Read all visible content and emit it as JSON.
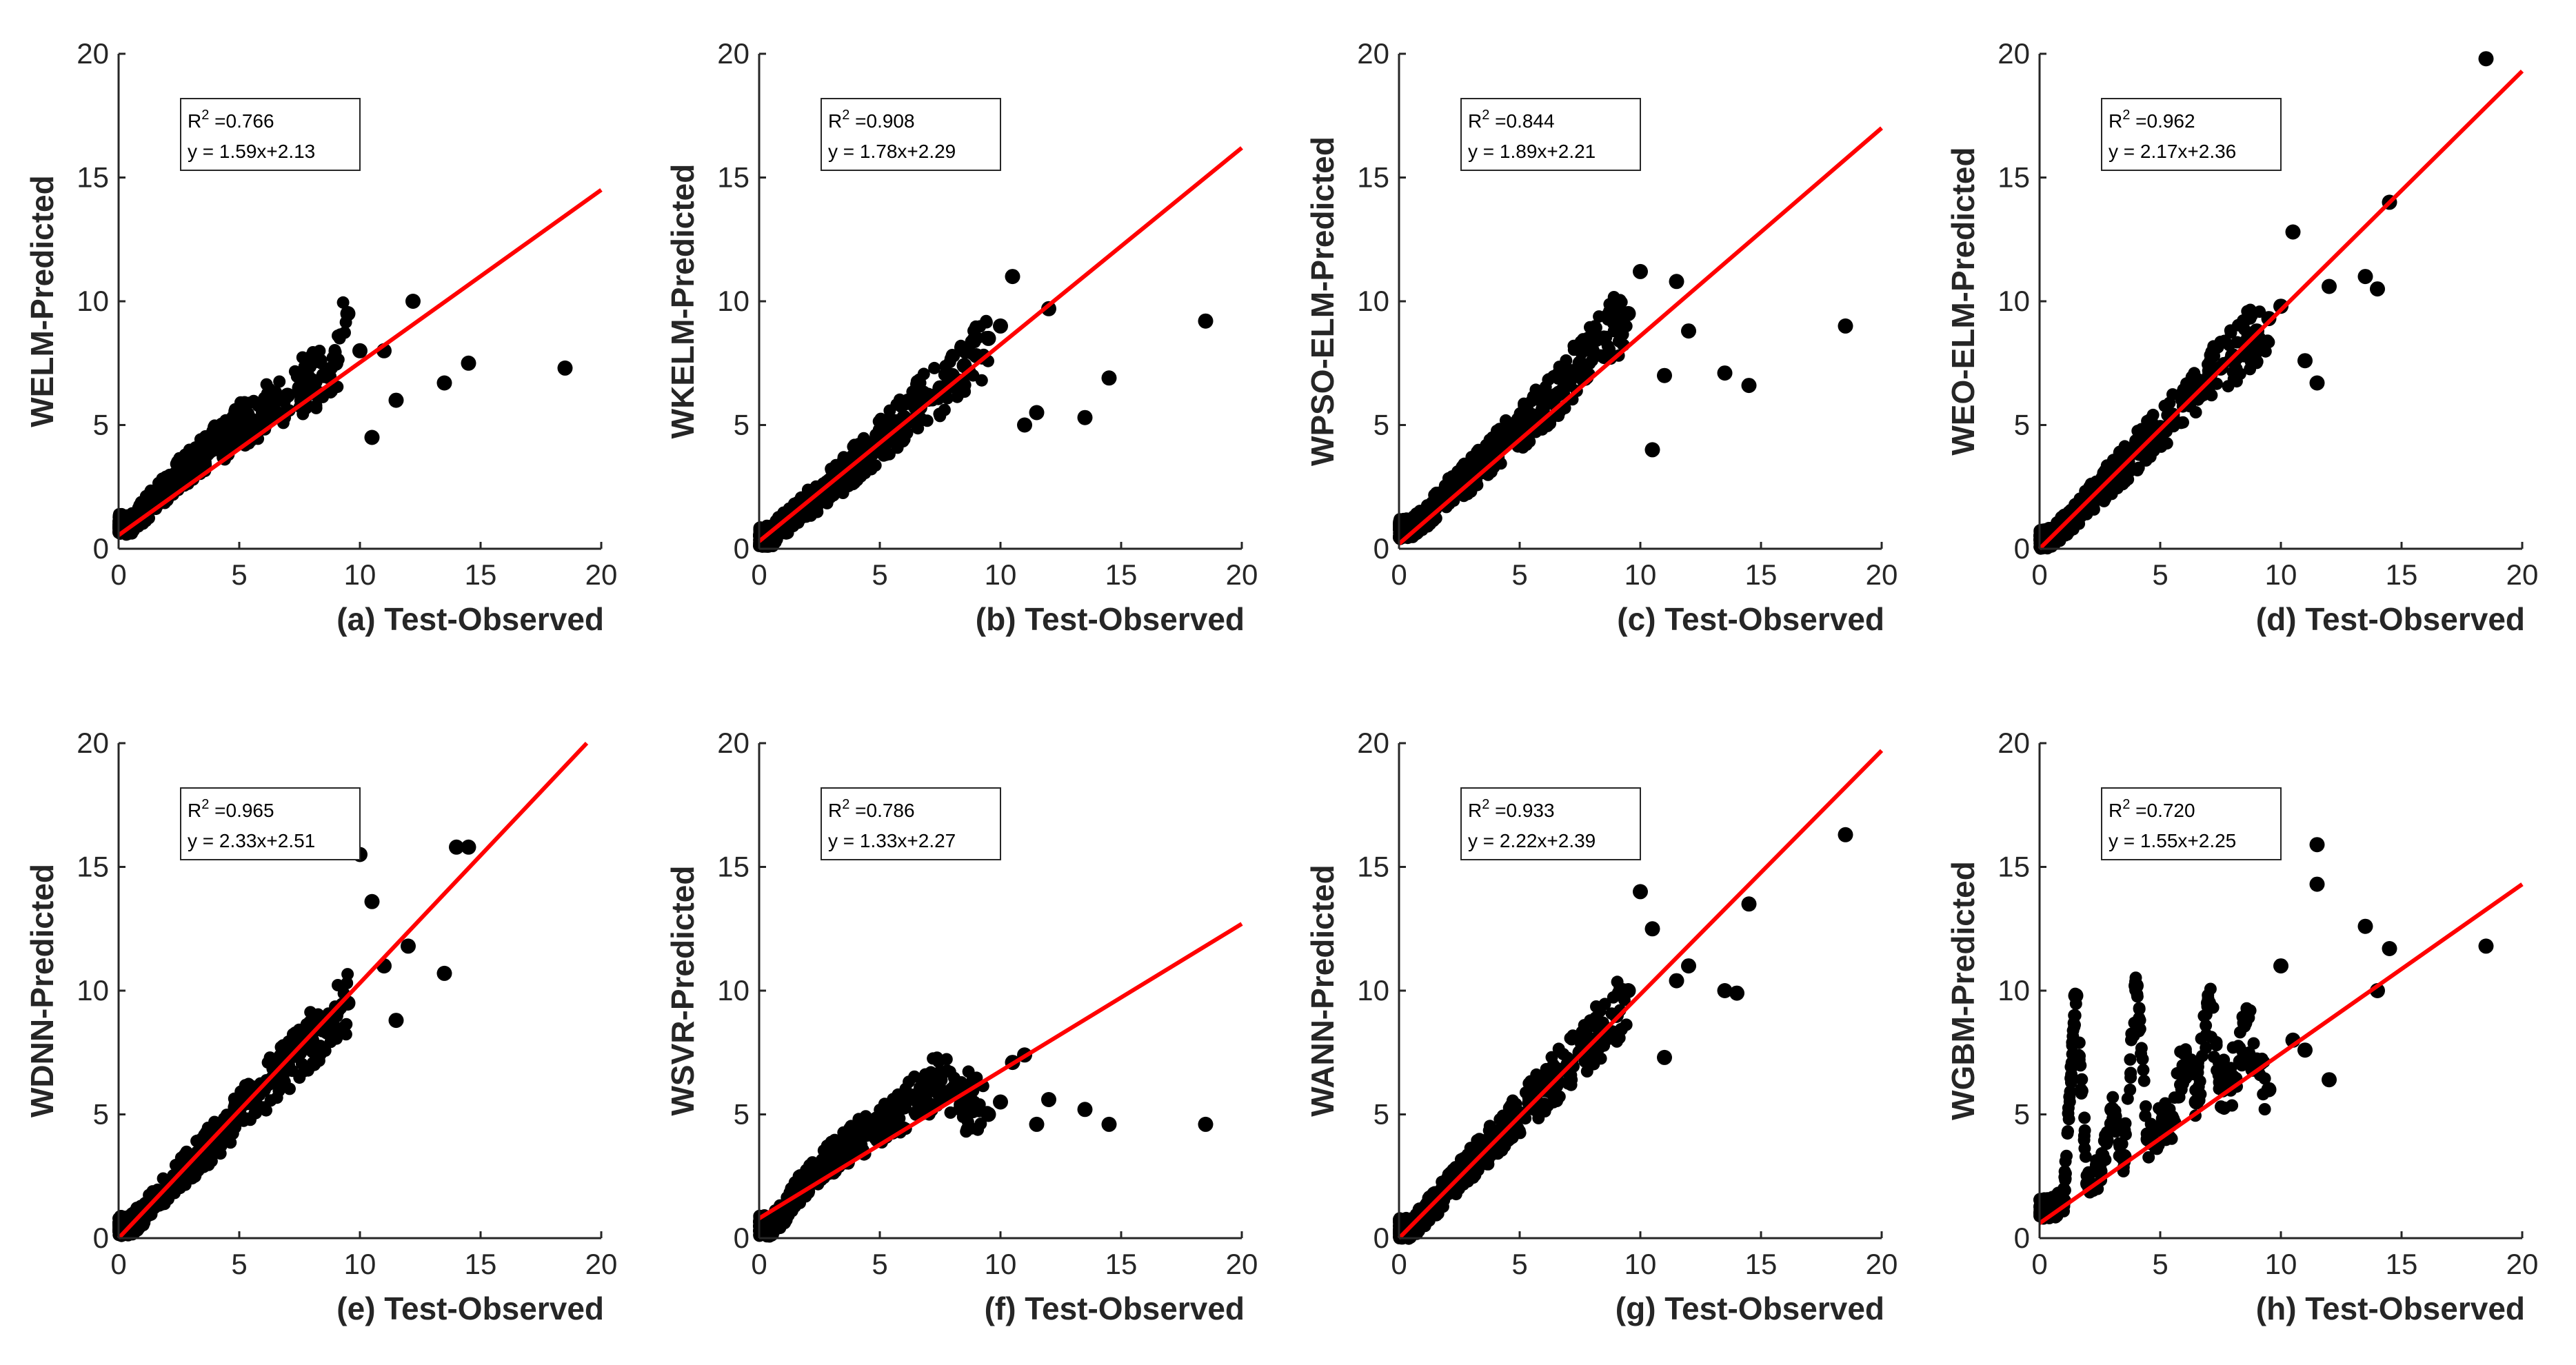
{
  "figure": {
    "fit_color": "#ff0000",
    "point_color": "#000000",
    "axis_color": "#262626"
  },
  "chart_data": [
    {
      "type": "scatter",
      "panel_label": "(a) Test-Observed",
      "ylabel": "WELM-Predicted",
      "xlim": [
        0,
        20
      ],
      "ylim": [
        0,
        20
      ],
      "xticks": [
        0,
        5,
        10,
        15,
        20
      ],
      "yticks": [
        0,
        5,
        10,
        15,
        20
      ],
      "annotation": {
        "r2_label": "R",
        "r2_sup": "2",
        "r2_value": " =0.766",
        "equation": "y = 1.59x+2.13"
      },
      "fit_line": {
        "x": [
          0,
          20
        ],
        "y": [
          0.55,
          14.5
        ]
      },
      "x": [
        0.5,
        1.0,
        1.5,
        2.0,
        2.5,
        3.0,
        3.5,
        4.0,
        4.5,
        5.0,
        5.5,
        6.0,
        6.5,
        7.0,
        7.5,
        8.0,
        8.5,
        9.0,
        9.5,
        10.0,
        10.5,
        11.0,
        11.5,
        12.2,
        13.5,
        14.5,
        18.5
      ],
      "y": [
        1.0,
        1.5,
        2.0,
        2.5,
        3.0,
        3.4,
        3.8,
        4.2,
        4.5,
        5.0,
        5.2,
        5.5,
        6.0,
        6.2,
        6.5,
        6.8,
        7.0,
        7.5,
        9.5,
        8.0,
        4.5,
        8.0,
        6.0,
        10.0,
        6.7,
        7.5,
        7.3
      ]
    },
    {
      "type": "scatter",
      "panel_label": "(b) Test-Observed",
      "ylabel": "WKELM-Predicted",
      "xlim": [
        0,
        20
      ],
      "ylim": [
        0,
        20
      ],
      "xticks": [
        0,
        5,
        10,
        15,
        20
      ],
      "yticks": [
        0,
        5,
        10,
        15,
        20
      ],
      "annotation": {
        "r2_label": "R",
        "r2_sup": "2",
        "r2_value": " =0.908",
        "equation": "y = 1.78x+2.29"
      },
      "fit_line": {
        "x": [
          0,
          20
        ],
        "y": [
          0.3,
          16.2
        ]
      },
      "x": [
        0.5,
        1.0,
        1.5,
        2.0,
        2.5,
        3.0,
        3.5,
        4.0,
        4.5,
        5.0,
        5.5,
        6.0,
        6.5,
        7.0,
        7.5,
        8.0,
        8.5,
        9.0,
        9.5,
        10.0,
        10.5,
        11.0,
        11.5,
        12.0,
        13.5,
        14.5,
        18.5
      ],
      "y": [
        0.5,
        1.0,
        1.4,
        1.8,
        2.2,
        2.7,
        3.0,
        3.5,
        3.9,
        4.4,
        4.8,
        5.3,
        5.7,
        6.2,
        6.5,
        7.0,
        7.4,
        7.8,
        8.5,
        9.0,
        11.0,
        5.0,
        5.5,
        9.7,
        5.3,
        6.9,
        9.2
      ]
    },
    {
      "type": "scatter",
      "panel_label": "(c) Test-Observed",
      "ylabel": "WPSO-ELM-Predicted",
      "xlim": [
        0,
        20
      ],
      "ylim": [
        0,
        20
      ],
      "xticks": [
        0,
        5,
        10,
        15,
        20
      ],
      "yticks": [
        0,
        5,
        10,
        15,
        20
      ],
      "annotation": {
        "r2_label": "R",
        "r2_sup": "2",
        "r2_value": " =0.844",
        "equation": "y = 1.89x+2.21"
      },
      "fit_line": {
        "x": [
          0,
          20
        ],
        "y": [
          0.2,
          17.0
        ]
      },
      "x": [
        0.5,
        1.0,
        1.5,
        2.0,
        2.5,
        3.0,
        3.5,
        4.0,
        4.5,
        5.0,
        5.5,
        6.0,
        6.5,
        7.0,
        7.5,
        8.0,
        8.5,
        9.0,
        9.5,
        10.0,
        10.5,
        11.0,
        11.5,
        12.0,
        13.5,
        14.5,
        18.5
      ],
      "y": [
        0.8,
        1.2,
        1.7,
        2.2,
        2.6,
        3.0,
        3.6,
        4.0,
        4.4,
        4.8,
        5.3,
        5.8,
        6.2,
        6.8,
        7.5,
        8.0,
        8.5,
        9.0,
        9.5,
        11.2,
        4.0,
        7.0,
        10.8,
        8.8,
        7.1,
        6.6,
        9.0
      ]
    },
    {
      "type": "scatter",
      "panel_label": "(d) Test-Observed",
      "ylabel": "WEO-ELM-Predicted",
      "xlim": [
        0,
        20
      ],
      "ylim": [
        0,
        20
      ],
      "xticks": [
        0,
        5,
        10,
        15,
        20
      ],
      "yticks": [
        0,
        5,
        10,
        15,
        20
      ],
      "annotation": {
        "r2_label": "R",
        "r2_sup": "2",
        "r2_value": " =0.962",
        "equation": "y = 2.17x+2.36"
      },
      "fit_line": {
        "x": [
          0,
          20
        ],
        "y": [
          0.0,
          19.3
        ]
      },
      "x": [
        0.5,
        1.0,
        1.5,
        2.0,
        2.5,
        3.0,
        3.5,
        4.0,
        4.5,
        5.0,
        5.5,
        6.0,
        6.5,
        7.0,
        7.5,
        8.0,
        8.5,
        9.0,
        9.5,
        10.0,
        10.5,
        11.0,
        11.5,
        12.0,
        13.5,
        14.0,
        14.5,
        18.5
      ],
      "y": [
        0.4,
        0.9,
        1.4,
        1.9,
        2.4,
        2.9,
        3.4,
        3.9,
        4.4,
        4.9,
        5.4,
        5.9,
        6.4,
        6.9,
        7.3,
        7.8,
        8.3,
        8.8,
        9.3,
        9.8,
        12.8,
        7.6,
        6.7,
        10.6,
        11.0,
        10.5,
        14.0,
        19.8
      ]
    },
    {
      "type": "scatter",
      "panel_label": "(e) Test-Observed",
      "ylabel": "WDNN-Predicted",
      "xlim": [
        0,
        20
      ],
      "ylim": [
        0,
        20
      ],
      "xticks": [
        0,
        5,
        10,
        15,
        20
      ],
      "yticks": [
        0,
        5,
        10,
        15,
        20
      ],
      "annotation": {
        "r2_label": "R",
        "r2_sup": "2",
        "r2_value": " =0.965",
        "equation": "y = 2.33x+2.51"
      },
      "fit_line": {
        "x": [
          0,
          19.4
        ],
        "y": [
          0.0,
          20.0
        ]
      },
      "x": [
        0.5,
        1.0,
        1.5,
        2.0,
        2.5,
        3.0,
        3.5,
        4.0,
        4.5,
        5.0,
        5.5,
        6.0,
        6.5,
        7.0,
        7.5,
        8.0,
        8.5,
        9.0,
        9.5,
        10.0,
        10.5,
        11.0,
        11.5,
        12.0,
        13.5,
        14.0,
        14.5
      ],
      "y": [
        0.5,
        1.0,
        1.5,
        2.0,
        2.5,
        3.0,
        3.5,
        4.0,
        4.5,
        5.0,
        5.5,
        6.0,
        6.5,
        7.0,
        7.5,
        8.0,
        8.5,
        9.0,
        9.5,
        15.5,
        13.6,
        11.0,
        8.8,
        11.8,
        10.7,
        15.8,
        15.8
      ]
    },
    {
      "type": "scatter",
      "panel_label": "(f) Test-Observed",
      "ylabel": "WSVR-Predicted",
      "xlim": [
        0,
        20
      ],
      "ylim": [
        0,
        20
      ],
      "xticks": [
        0,
        5,
        10,
        15,
        20
      ],
      "yticks": [
        0,
        5,
        10,
        15,
        20
      ],
      "annotation": {
        "r2_label": "R",
        "r2_sup": "2",
        "r2_value": " =0.786",
        "equation": "y = 1.33x+2.27"
      },
      "fit_line": {
        "x": [
          0,
          20
        ],
        "y": [
          0.8,
          12.7
        ]
      },
      "x": [
        0.5,
        1.0,
        1.5,
        2.0,
        2.5,
        3.0,
        3.5,
        4.0,
        4.5,
        5.0,
        5.5,
        6.0,
        6.5,
        7.0,
        7.5,
        8.0,
        8.5,
        9.0,
        9.5,
        10.0,
        10.5,
        11.0,
        11.5,
        12.0,
        13.5,
        14.5,
        18.5
      ],
      "y": [
        0.5,
        1.0,
        1.8,
        2.3,
        2.8,
        3.2,
        3.6,
        4.0,
        4.3,
        4.6,
        5.0,
        5.3,
        5.6,
        6.0,
        6.4,
        6.0,
        5.6,
        5.3,
        5.0,
        5.5,
        7.1,
        7.4,
        4.6,
        5.6,
        5.2,
        4.6,
        4.6
      ]
    },
    {
      "type": "scatter",
      "panel_label": "(g) Test-Observed",
      "ylabel": "WANN-Predicted",
      "xlim": [
        0,
        20
      ],
      "ylim": [
        0,
        20
      ],
      "xticks": [
        0,
        5,
        10,
        15,
        20
      ],
      "yticks": [
        0,
        5,
        10,
        15,
        20
      ],
      "annotation": {
        "r2_label": "R",
        "r2_sup": "2",
        "r2_value": " =0.933",
        "equation": "y = 2.22x+2.39"
      },
      "fit_line": {
        "x": [
          0,
          20
        ],
        "y": [
          0.0,
          19.7
        ]
      },
      "x": [
        0.5,
        1.0,
        1.5,
        2.0,
        2.5,
        3.0,
        3.5,
        4.0,
        4.5,
        5.0,
        5.5,
        6.0,
        6.5,
        7.0,
        7.5,
        8.0,
        8.5,
        9.0,
        9.5,
        10.0,
        10.5,
        11.0,
        11.5,
        12.0,
        13.5,
        14.0,
        14.5,
        18.5
      ],
      "y": [
        0.4,
        0.9,
        1.4,
        2.0,
        2.5,
        3.0,
        3.5,
        4.0,
        4.5,
        5.0,
        5.5,
        6.0,
        6.5,
        7.0,
        7.5,
        8.0,
        8.5,
        9.0,
        10.0,
        14.0,
        12.5,
        7.3,
        10.4,
        11.0,
        10.0,
        9.9,
        13.5,
        16.3
      ]
    },
    {
      "type": "scatter",
      "panel_label": "(h) Test-Observed",
      "ylabel": "WGBM-Predicted",
      "xlim": [
        0,
        20
      ],
      "ylim": [
        0,
        20
      ],
      "xticks": [
        0,
        5,
        10,
        15,
        20
      ],
      "yticks": [
        0,
        5,
        10,
        15,
        20
      ],
      "annotation": {
        "r2_label": "R",
        "r2_sup": "2",
        "r2_value": " =0.720",
        "equation": "y = 1.55x+2.25"
      },
      "fit_line": {
        "x": [
          0,
          20
        ],
        "y": [
          0.6,
          14.3
        ]
      },
      "x": [
        0.5,
        1.0,
        1.5,
        2.0,
        2.5,
        3.0,
        3.5,
        4.0,
        4.5,
        5.0,
        5.5,
        6.0,
        6.5,
        7.0,
        7.5,
        8.0,
        8.5,
        9.0,
        9.5,
        10.0,
        10.5,
        11.0,
        11.5,
        11.5,
        12.0,
        13.5,
        14.0,
        14.5,
        18.5
      ],
      "y": [
        1.2,
        1.5,
        9.8,
        2.2,
        2.7,
        5.2,
        3.3,
        10.2,
        4.0,
        4.5,
        4.8,
        7.5,
        5.5,
        9.5,
        6.3,
        6.5,
        8.7,
        7.2,
        6.0,
        11.0,
        8.0,
        7.6,
        15.9,
        14.3,
        6.4,
        12.6,
        10.0,
        11.7,
        11.8
      ]
    }
  ]
}
